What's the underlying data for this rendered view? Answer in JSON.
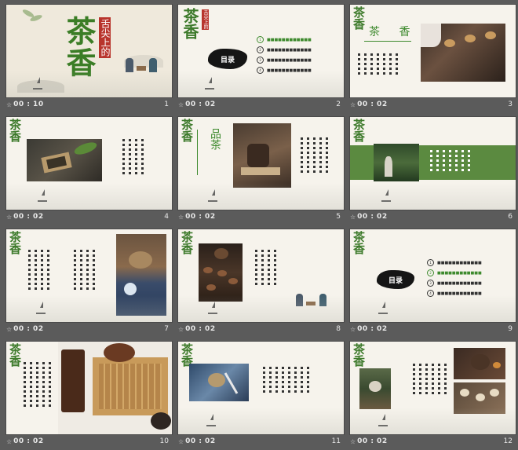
{
  "slides": [
    {
      "number": "1",
      "time": "00 : 10",
      "title_big": "茶香",
      "title_seal": "舌尖上的"
    },
    {
      "number": "2",
      "time": "00 : 02",
      "logo": "茶香",
      "seal": "舌尖上的",
      "toc_label": "目录",
      "toc_items": [
        "1",
        "2",
        "3",
        "4"
      ]
    },
    {
      "number": "3",
      "time": "00 : 02",
      "logo": "茶香",
      "heading": "茶 香"
    },
    {
      "number": "4",
      "time": "00 : 02",
      "logo": "茶香"
    },
    {
      "number": "5",
      "time": "00 : 02",
      "logo": "茶香",
      "heading": "品茶"
    },
    {
      "number": "6",
      "time": "00 : 02",
      "logo": "茶香"
    },
    {
      "number": "7",
      "time": "00 : 02",
      "logo": "茶香"
    },
    {
      "number": "8",
      "time": "00 : 02",
      "logo": "茶香"
    },
    {
      "number": "9",
      "time": "00 : 02",
      "logo": "茶香",
      "toc_label": "目录",
      "toc_items": [
        "1",
        "2",
        "3",
        "4"
      ]
    },
    {
      "number": "10",
      "time": "00 : 02",
      "logo": "茶香"
    },
    {
      "number": "11",
      "time": "00 : 02",
      "logo": "茶香"
    },
    {
      "number": "12",
      "time": "00 : 02",
      "logo": "茶香"
    }
  ],
  "colors": {
    "background": "#5b5b5b",
    "slide": "#f6f3ec",
    "accent_green": "#3e8a2e",
    "seal_red": "#b8342c"
  },
  "icons": {
    "timer": "star-icon"
  }
}
